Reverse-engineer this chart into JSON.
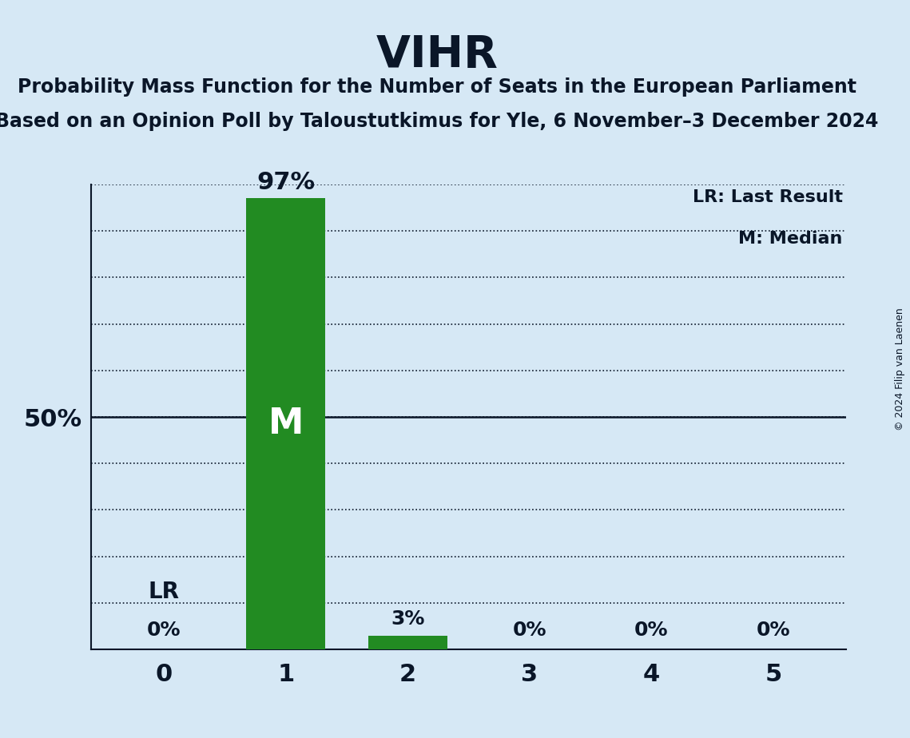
{
  "title": "VIHR",
  "subtitle1": "Probability Mass Function for the Number of Seats in the European Parliament",
  "subtitle2": "Based on an Opinion Poll by Taloustutkimus for Yle, 6 November–3 December 2024",
  "copyright": "© 2024 Filip van Laenen",
  "seats": [
    0,
    1,
    2,
    3,
    4,
    5
  ],
  "probabilities": [
    0,
    97,
    3,
    0,
    0,
    0
  ],
  "bar_color": "#228B22",
  "background_color": "#d6e8f5",
  "median_seat": 1,
  "last_result_seat": 0,
  "ylim": [
    0,
    100
  ],
  "yticks": [
    0,
    10,
    20,
    30,
    40,
    50,
    60,
    70,
    80,
    90,
    100
  ],
  "legend_lr": "LR: Last Result",
  "legend_m": "M: Median",
  "bar_width": 0.65,
  "text_color": "#0a1628"
}
